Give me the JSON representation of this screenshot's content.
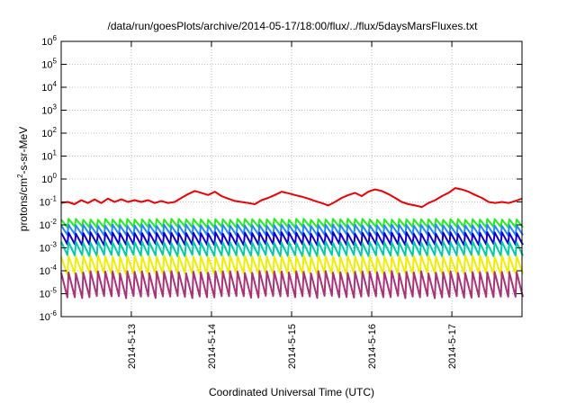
{
  "chart_data": {
    "type": "line",
    "title": "/data/run/goesPlots/archive/2014-05-17/18:00/flux/../flux/5daysMarsFluxes.txt",
    "xlabel": "Coordinated Universal Time (UTC)",
    "ylabel": {
      "prefix": "protons/cm",
      "sup": "2",
      "suffix": "-s-sr-MeV"
    },
    "yscale": "log",
    "ylim": [
      1e-06,
      1000000.0
    ],
    "y_ticks": [
      {
        "base": "10",
        "exp": "-6"
      },
      {
        "base": "10",
        "exp": "-5"
      },
      {
        "base": "10",
        "exp": "-4"
      },
      {
        "base": "10",
        "exp": "-3"
      },
      {
        "base": "10",
        "exp": "-2"
      },
      {
        "base": "10",
        "exp": "-1"
      },
      {
        "base": "10",
        "exp": "0"
      },
      {
        "base": "10",
        "exp": "1"
      },
      {
        "base": "10",
        "exp": "2"
      },
      {
        "base": "10",
        "exp": "3"
      },
      {
        "base": "10",
        "exp": "4"
      },
      {
        "base": "10",
        "exp": "5"
      },
      {
        "base": "10",
        "exp": "6"
      }
    ],
    "xlim": [
      "2014-05-12T03:00",
      "2014-05-17T21:00"
    ],
    "x_ticks": [
      "2014-5-13",
      "2014-5-14",
      "2014-5-15",
      "2014-5-16",
      "2014-5-17"
    ],
    "grid": true,
    "series": [
      {
        "color": "#ee0000",
        "x": [
          "2014-05-12T03:00",
          "2014-05-12T05:00",
          "2014-05-12T07:00",
          "2014-05-12T09:00",
          "2014-05-12T11:00",
          "2014-05-12T13:00",
          "2014-05-12T15:00",
          "2014-05-12T17:00",
          "2014-05-12T19:00",
          "2014-05-12T21:00",
          "2014-05-12T23:00",
          "2014-05-13T01:00",
          "2014-05-13T03:00",
          "2014-05-13T05:00",
          "2014-05-13T07:00",
          "2014-05-13T09:00",
          "2014-05-13T11:00",
          "2014-05-13T13:00",
          "2014-05-13T15:00",
          "2014-05-13T17:00",
          "2014-05-13T19:00",
          "2014-05-13T21:00",
          "2014-05-13T23:00",
          "2014-05-14T01:00",
          "2014-05-14T03:00",
          "2014-05-14T05:00",
          "2014-05-14T07:00",
          "2014-05-14T09:00",
          "2014-05-14T11:00",
          "2014-05-14T13:00",
          "2014-05-14T15:00",
          "2014-05-14T17:00",
          "2014-05-14T19:00",
          "2014-05-14T21:00",
          "2014-05-14T23:00",
          "2014-05-15T01:00",
          "2014-05-15T03:00",
          "2014-05-15T05:00",
          "2014-05-15T07:00",
          "2014-05-15T09:00",
          "2014-05-15T11:00",
          "2014-05-15T13:00",
          "2014-05-15T15:00",
          "2014-05-15T17:00",
          "2014-05-15T19:00",
          "2014-05-15T21:00",
          "2014-05-15T23:00",
          "2014-05-16T01:00",
          "2014-05-16T03:00",
          "2014-05-16T05:00",
          "2014-05-16T07:00",
          "2014-05-16T09:00",
          "2014-05-16T11:00",
          "2014-05-16T13:00",
          "2014-05-16T15:00",
          "2014-05-16T17:00",
          "2014-05-16T19:00",
          "2014-05-16T21:00",
          "2014-05-16T23:00",
          "2014-05-17T01:00",
          "2014-05-17T03:00",
          "2014-05-17T05:00",
          "2014-05-17T07:00",
          "2014-05-17T09:00",
          "2014-05-17T11:00",
          "2014-05-17T13:00",
          "2014-05-17T15:00",
          "2014-05-17T17:00",
          "2014-05-17T19:00",
          "2014-05-17T21:00"
        ],
        "y": [
          0.09,
          0.1,
          0.08,
          0.12,
          0.09,
          0.13,
          0.09,
          0.14,
          0.1,
          0.13,
          0.1,
          0.12,
          0.1,
          0.12,
          0.09,
          0.11,
          0.09,
          0.1,
          0.15,
          0.22,
          0.3,
          0.25,
          0.2,
          0.28,
          0.18,
          0.14,
          0.11,
          0.1,
          0.09,
          0.08,
          0.12,
          0.15,
          0.2,
          0.28,
          0.24,
          0.2,
          0.17,
          0.14,
          0.11,
          0.09,
          0.07,
          0.1,
          0.15,
          0.2,
          0.25,
          0.18,
          0.28,
          0.35,
          0.3,
          0.22,
          0.15,
          0.1,
          0.08,
          0.07,
          0.06,
          0.09,
          0.12,
          0.18,
          0.25,
          0.4,
          0.35,
          0.28,
          0.2,
          0.15,
          0.1,
          0.09,
          0.1,
          0.09,
          0.11,
          0.14
        ]
      },
      {
        "color": "#22ee22",
        "base": 0.012,
        "amp": 2.2,
        "jitter": 0.06
      },
      {
        "color": "#2288ff",
        "base": 0.006,
        "amp": 2.6,
        "jitter": 0.07
      },
      {
        "color": "#1100cc",
        "base": 0.0025,
        "amp": 3.2,
        "jitter": 0.08
      },
      {
        "color": "#00ccaa",
        "base": 0.0009,
        "amp": 3.8,
        "jitter": 0.08
      },
      {
        "color": "#eeee00",
        "base": 0.00018,
        "amp": 6.0,
        "jitter": 0.1
      },
      {
        "color": "#aa3377",
        "base": 2.5e-05,
        "amp": 12.0,
        "jitter": 0.12
      }
    ]
  }
}
